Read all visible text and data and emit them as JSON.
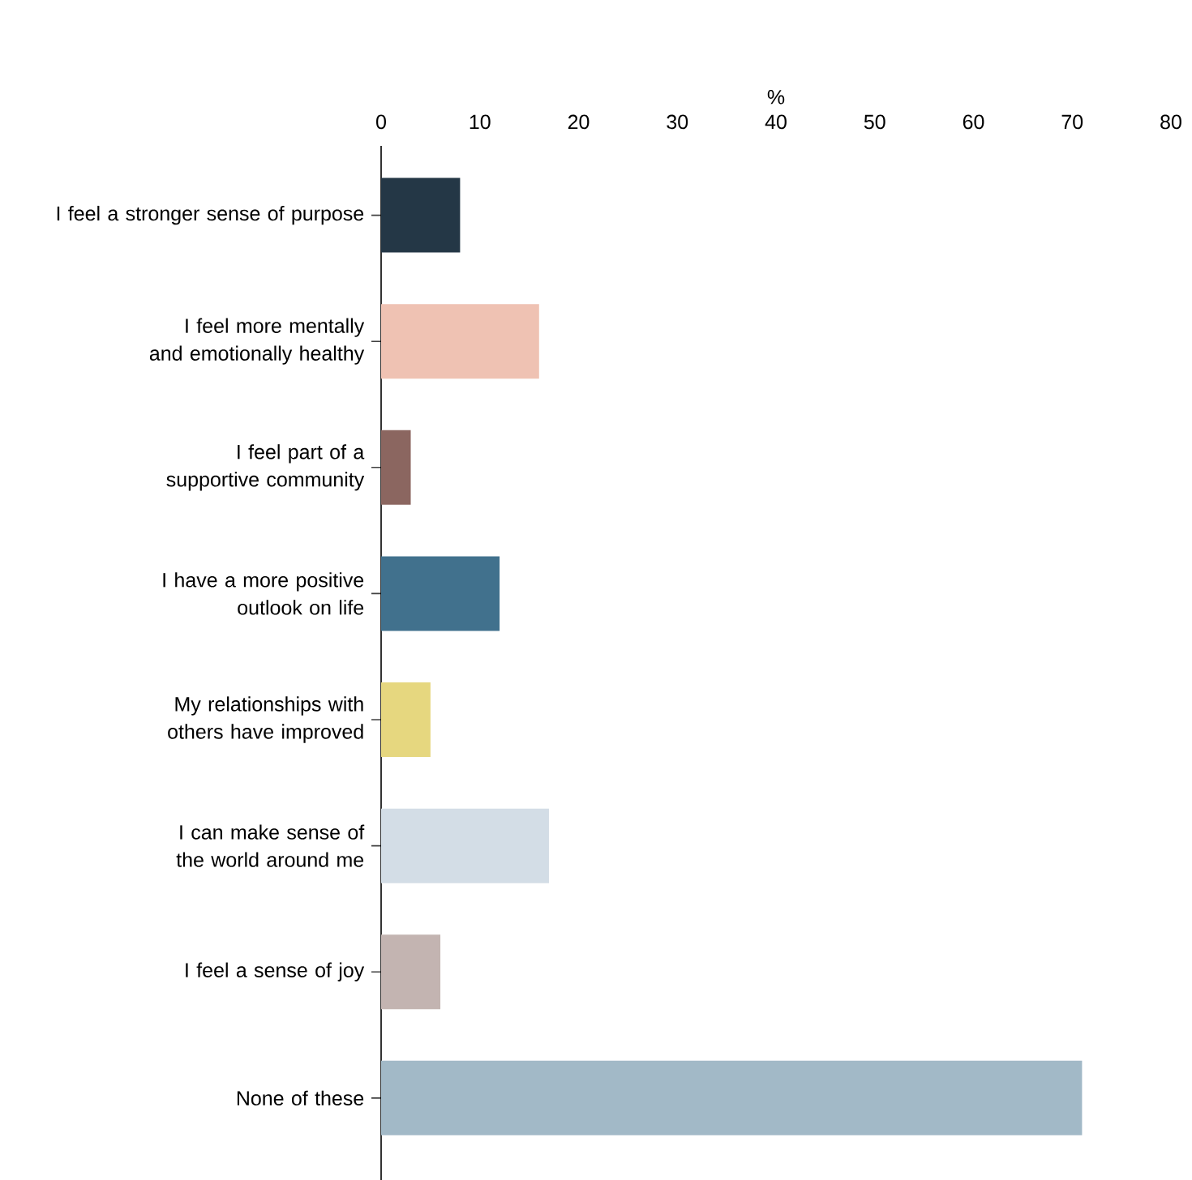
{
  "chart_data": {
    "type": "bar",
    "orientation": "horizontal",
    "xlabel": "%",
    "categories": [
      "I feel a stronger sense of purpose",
      "I feel more mentally and emotionally healthy",
      "I feel part of a supportive community",
      "I have a more positive outlook on life",
      "My relationships with others have improved",
      "I can make sense of the world around me",
      "I feel a sense of joy",
      "None of these"
    ],
    "values": [
      8,
      16,
      3,
      12,
      5,
      17,
      6,
      71
    ],
    "colors": [
      "#243746",
      "#efc2b3",
      "#8b6660",
      "#41718d",
      "#e6d77f",
      "#d3dde6",
      "#c3b4b1",
      "#a2b9c7"
    ],
    "xlim": [
      0,
      80
    ],
    "xticks": [
      0,
      10,
      20,
      30,
      40,
      50,
      60,
      70,
      80
    ]
  }
}
